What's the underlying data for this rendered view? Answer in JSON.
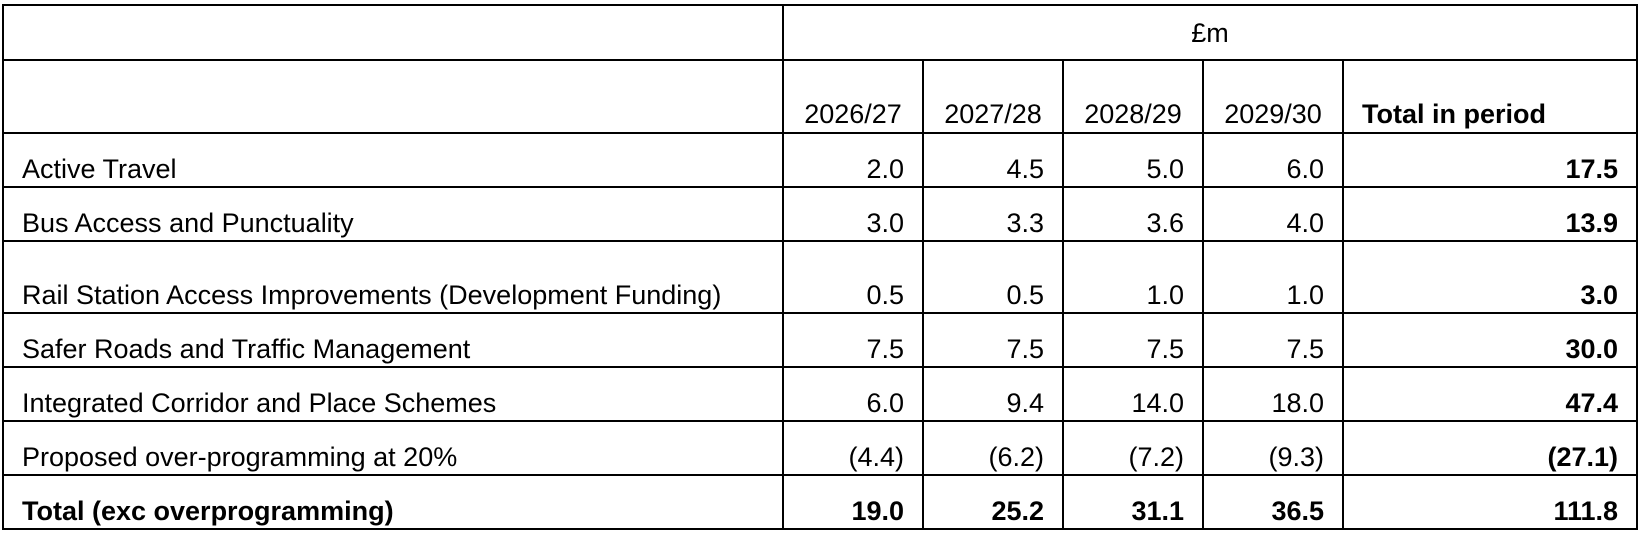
{
  "unit_label": "£m",
  "columns": [
    "2026/27",
    "2027/28",
    "2028/29",
    "2029/30"
  ],
  "total_column": "Total in period",
  "rows": [
    {
      "label": "Active Travel",
      "values": [
        "2.0",
        "4.5",
        "5.0",
        "6.0"
      ],
      "total": "17.5"
    },
    {
      "label": "Bus Access and Punctuality",
      "values": [
        "3.0",
        "3.3",
        "3.6",
        "4.0"
      ],
      "total": "13.9"
    },
    {
      "label": "Rail Station Access Improvements (Development Funding)",
      "values": [
        "0.5",
        "0.5",
        "1.0",
        "1.0"
      ],
      "total": "3.0"
    },
    {
      "label": "Safer Roads and Traffic Management",
      "values": [
        "7.5",
        "7.5",
        "7.5",
        "7.5"
      ],
      "total": "30.0"
    },
    {
      "label": "Integrated Corridor and Place Schemes",
      "values": [
        "6.0",
        "9.4",
        "14.0",
        "18.0"
      ],
      "total": "47.4"
    },
    {
      "label": "Proposed over-programming at 20%",
      "values": [
        "(4.4)",
        "(6.2)",
        "(7.2)",
        "(9.3)"
      ],
      "total": "(27.1)"
    }
  ],
  "total_row": {
    "label": "Total (exc overprogramming)",
    "values": [
      "19.0",
      "25.2",
      "31.1",
      "36.5"
    ],
    "total": "111.8"
  }
}
